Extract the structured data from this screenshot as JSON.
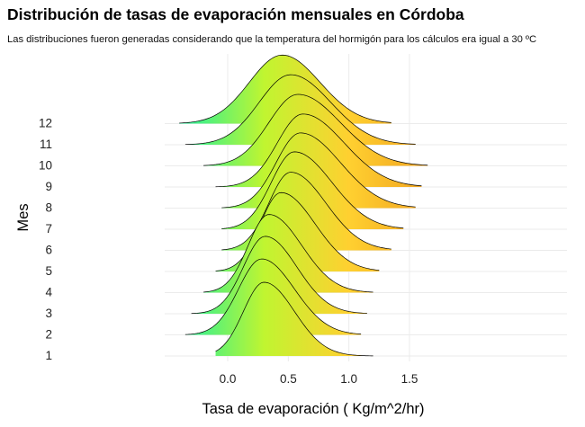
{
  "chart_data": {
    "type": "ridgeline",
    "title": "Distribución de tasas de evaporación mensuales en Córdoba",
    "subtitle": "Las distribuciones fueron generadas considerando que la temperatura del hormigón para los cálculos era igual a 30 ºC",
    "xlabel": "Tasa de evaporación ( Kg/m^2/hr)",
    "ylabel": "Mes",
    "xlim": [
      -0.52,
      2.8
    ],
    "x_ticks": [
      "0.0",
      "0.5",
      "1.0",
      "1.5"
    ],
    "x_tick_values": [
      0.0,
      0.5,
      1.0,
      1.5
    ],
    "gradient_colors": [
      "#1ef0a0",
      "#c0f530",
      "#ffd030",
      "#f0a020"
    ],
    "gradient_range": [
      -0.4,
      1.7
    ],
    "grid": true,
    "series": [
      {
        "name": "1",
        "peak": 0.3,
        "sd_left": 0.17,
        "sd_right": 0.25,
        "min": -0.1,
        "max": 1.2,
        "height": 1.0
      },
      {
        "name": "2",
        "peak": 0.28,
        "sd_left": 0.19,
        "sd_right": 0.27,
        "min": -0.35,
        "max": 1.1,
        "height": 1.03
      },
      {
        "name": "3",
        "peak": 0.31,
        "sd_left": 0.18,
        "sd_right": 0.26,
        "min": -0.3,
        "max": 1.15,
        "height": 1.05
      },
      {
        "name": "4",
        "peak": 0.34,
        "sd_left": 0.17,
        "sd_right": 0.27,
        "min": -0.2,
        "max": 1.2,
        "height": 1.06
      },
      {
        "name": "5",
        "peak": 0.44,
        "sd_left": 0.17,
        "sd_right": 0.28,
        "min": -0.1,
        "max": 1.25,
        "height": 1.07
      },
      {
        "name": "6",
        "peak": 0.52,
        "sd_left": 0.18,
        "sd_right": 0.29,
        "min": -0.05,
        "max": 1.35,
        "height": 1.06
      },
      {
        "name": "7",
        "peak": 0.55,
        "sd_left": 0.19,
        "sd_right": 0.31,
        "min": -0.05,
        "max": 1.45,
        "height": 1.05
      },
      {
        "name": "8",
        "peak": 0.6,
        "sd_left": 0.2,
        "sd_right": 0.33,
        "min": -0.05,
        "max": 1.55,
        "height": 1.02
      },
      {
        "name": "9",
        "peak": 0.62,
        "sd_left": 0.21,
        "sd_right": 0.34,
        "min": -0.1,
        "max": 1.6,
        "height": 0.99
      },
      {
        "name": "10",
        "peak": 0.58,
        "sd_left": 0.24,
        "sd_right": 0.35,
        "min": -0.2,
        "max": 1.65,
        "height": 0.97
      },
      {
        "name": "11",
        "peak": 0.52,
        "sd_left": 0.26,
        "sd_right": 0.33,
        "min": -0.35,
        "max": 1.55,
        "height": 0.95
      },
      {
        "name": "12",
        "peak": 0.45,
        "sd_left": 0.27,
        "sd_right": 0.31,
        "min": -0.4,
        "max": 1.35,
        "height": 0.93
      }
    ]
  }
}
